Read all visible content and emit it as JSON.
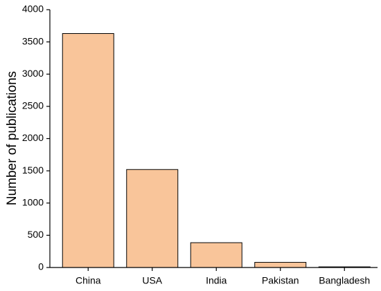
{
  "chart_data": {
    "type": "bar",
    "y_label": "Number of publications",
    "categories": [
      "China",
      "USA",
      "India",
      "Pakistan",
      "Bangladesh"
    ],
    "values": [
      3630,
      1520,
      385,
      80,
      10
    ],
    "color": "#f9c59a",
    "ylim": [
      0,
      4000
    ],
    "yticks": [
      0,
      500,
      1000,
      1500,
      2000,
      2500,
      3000,
      3500,
      4000
    ],
    "grid": false
  }
}
